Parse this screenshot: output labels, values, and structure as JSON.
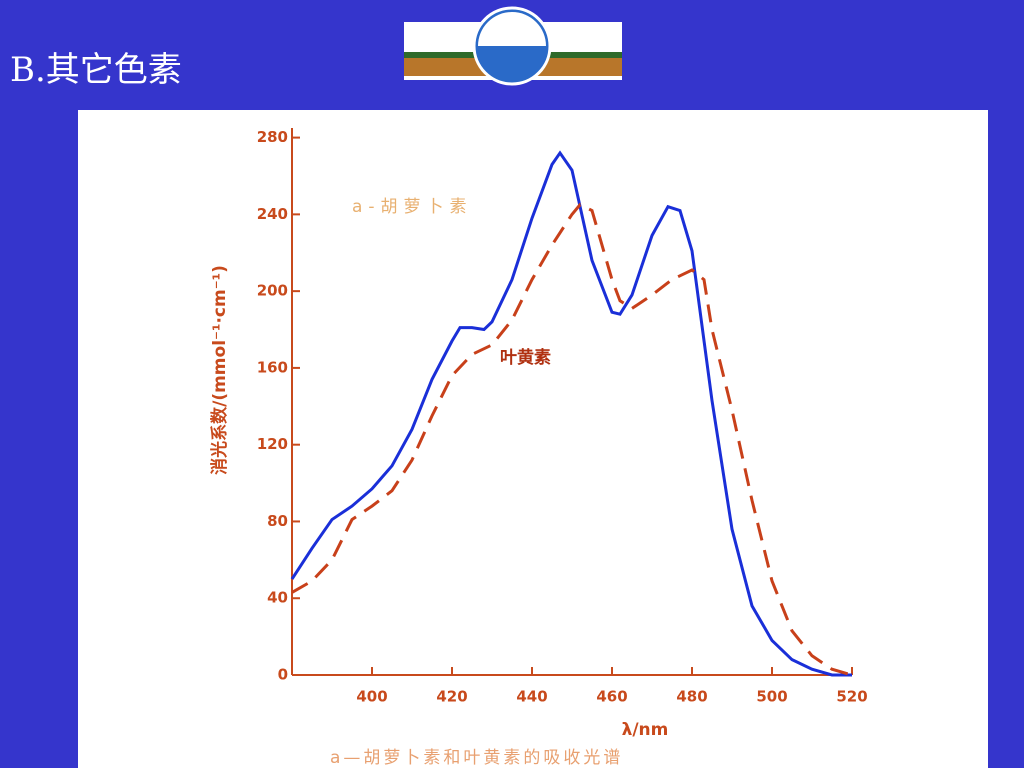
{
  "slide_title": "B.其它色素",
  "chart_data": {
    "type": "line",
    "x_label": "λ/nm",
    "y_label": "消光系数/(mmol⁻¹·cm⁻¹)",
    "caption": "a—胡萝卜素和叶黄素的吸收光谱",
    "xlim": [
      380,
      520
    ],
    "xticks": [
      400,
      420,
      440,
      460,
      480,
      500,
      520
    ],
    "ylim": [
      0,
      285
    ],
    "yticks": [
      0,
      40,
      80,
      120,
      160,
      200,
      240,
      280
    ],
    "series": [
      {
        "name": "a-胡萝卜素",
        "color": "#1a2fd8",
        "line_style": "solid",
        "x": [
          380,
          385,
          390,
          395,
          400,
          405,
          410,
          415,
          420,
          422,
          425,
          428,
          430,
          435,
          440,
          445,
          447,
          450,
          455,
          460,
          462,
          465,
          470,
          474,
          477,
          480,
          485,
          490,
          495,
          500,
          505,
          510,
          515,
          520
        ],
        "values": [
          50,
          66,
          81,
          88,
          97,
          109,
          128,
          154,
          174,
          181,
          181,
          180,
          184,
          206,
          238,
          266,
          272,
          263,
          216,
          189,
          188,
          198,
          229,
          244,
          242,
          221,
          143,
          76,
          36,
          18,
          8,
          3,
          0,
          0
        ]
      },
      {
        "name": "叶黄素",
        "color": "#c8401a",
        "line_style": "dashed",
        "x": [
          380,
          385,
          390,
          395,
          400,
          405,
          410,
          415,
          420,
          425,
          430,
          435,
          440,
          445,
          450,
          452,
          455,
          460,
          462,
          465,
          470,
          475,
          480,
          483,
          485,
          490,
          495,
          500,
          505,
          510,
          515,
          520
        ],
        "values": [
          43,
          49,
          60,
          81,
          88,
          96,
          112,
          135,
          156,
          167,
          172,
          185,
          206,
          224,
          240,
          245,
          242,
          206,
          195,
          191,
          198,
          206,
          211,
          206,
          180,
          138,
          91,
          49,
          23,
          10,
          3,
          0
        ]
      }
    ]
  }
}
